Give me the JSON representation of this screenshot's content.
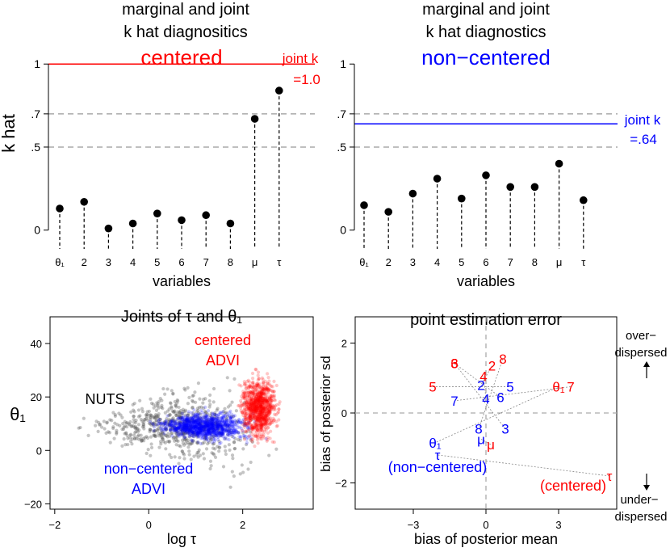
{
  "colors": {
    "red": "#ff0000",
    "blue": "#0000ff",
    "black": "#000000",
    "gray": "#aaaaaa",
    "nuts": "#555555"
  },
  "chart_data": [
    {
      "type": "scatter",
      "title_line1": "marginal and joint",
      "title_line2": "k hat diagnositics",
      "subtitle": "centered",
      "subtitle_color": "#ff0000",
      "xlabel": "variables",
      "ylabel": "k hat",
      "categories": [
        "θ₁",
        "2",
        "3",
        "4",
        "5",
        "6",
        "7",
        "8",
        "μ",
        "τ"
      ],
      "values": [
        0.13,
        0.17,
        0.01,
        0.04,
        0.1,
        0.06,
        0.09,
        0.04,
        0.67,
        0.84
      ],
      "yticks": [
        "0",
        ".5",
        ".7",
        "1"
      ],
      "ytick_values": [
        0,
        0.5,
        0.7,
        1
      ],
      "ylim": [
        -0.05,
        1.04
      ],
      "hlines": [
        0.5,
        0.7
      ],
      "joint_k": 1.0,
      "joint_label_line1": "joint k",
      "joint_label_line2": "=1.0"
    },
    {
      "type": "scatter",
      "title_line1": "marginal and joint",
      "title_line2": "k hat diagnostics",
      "subtitle": "non−centered",
      "subtitle_color": "#0000ff",
      "xlabel": "variables",
      "ylabel": "",
      "categories": [
        "θ₁",
        "2",
        "3",
        "4",
        "5",
        "6",
        "7",
        "8",
        "μ",
        "τ"
      ],
      "values": [
        0.15,
        0.11,
        0.22,
        0.31,
        0.19,
        0.33,
        0.26,
        0.26,
        0.4,
        0.18
      ],
      "yticks": [
        "0",
        ".5",
        ".7",
        "1"
      ],
      "ytick_values": [
        0,
        0.5,
        0.7,
        1
      ],
      "ylim": [
        -0.05,
        1.04
      ],
      "hlines": [
        0.5,
        0.7
      ],
      "joint_k": 0.64,
      "joint_label_line1": "joint k",
      "joint_label_line2": "=.64"
    },
    {
      "type": "scatter",
      "title": "Joints of τ and θ₁",
      "xlabel": "log τ",
      "ylabel": "θ₁",
      "xticks": [
        -2,
        0,
        2
      ],
      "yticks": [
        -20,
        0,
        20,
        40
      ],
      "xlim": [
        -2.1,
        3.5
      ],
      "ylim": [
        -22,
        50
      ],
      "series": [
        {
          "name": "NUTS",
          "color": "#555555",
          "center": [
            0.6,
            9
          ],
          "spread": [
            1.3,
            6
          ]
        },
        {
          "name_line1": "non−centered",
          "name_line2": "ADVI",
          "color": "#0000ff",
          "center": [
            1.2,
            9
          ],
          "spread": [
            0.7,
            3.5
          ]
        },
        {
          "name_line1": "centered",
          "name_line2": "ADVI",
          "color": "#ff0000",
          "center": [
            2.35,
            16
          ],
          "spread": [
            0.28,
            9
          ]
        }
      ]
    },
    {
      "type": "scatter",
      "title": "point estimation error",
      "xlabel": "bias of posterior mean",
      "ylabel": "bias of posterior sd",
      "xticks": [
        -3,
        0,
        3
      ],
      "yticks": [
        -2,
        0,
        2
      ],
      "xlim": [
        -5.4,
        5.4
      ],
      "ylim": [
        -2.75,
        2.75
      ],
      "over_label_line1": "over−",
      "over_label_line2": "dispersed",
      "under_label_line1": "under−",
      "under_label_line2": "dispersed",
      "centered_label": "(centered)",
      "noncentered_label": "(non−centered)",
      "points": [
        {
          "label": "θ₁",
          "centered": [
            3.0,
            0.75
          ],
          "noncentered": [
            -2.1,
            -0.85
          ]
        },
        {
          "label": "2",
          "centered": [
            0.25,
            1.35
          ],
          "noncentered": [
            -0.2,
            0.8
          ]
        },
        {
          "label": "3",
          "centered": [
            -1.3,
            1.42
          ],
          "noncentered": [
            0.8,
            -0.45
          ]
        },
        {
          "label": "4",
          "centered": [
            -0.1,
            1.05
          ],
          "noncentered": [
            0,
            0.4
          ]
        },
        {
          "label": "5",
          "centered": [
            -2.2,
            0.75
          ],
          "noncentered": [
            1.0,
            0.75
          ]
        },
        {
          "label": "6",
          "centered": [
            -1.3,
            1.42
          ],
          "noncentered": [
            0.6,
            0.45
          ]
        },
        {
          "label": "7",
          "centered": [
            3.5,
            0.75
          ],
          "noncentered": [
            -1.3,
            0.35
          ]
        },
        {
          "label": "8",
          "centered": [
            0.7,
            1.55
          ],
          "noncentered": [
            -0.3,
            -0.45
          ]
        },
        {
          "label": "μ",
          "centered": [
            0.2,
            -0.9
          ],
          "noncentered": [
            -0.2,
            -0.75
          ]
        },
        {
          "label": "τ",
          "centered": [
            5.1,
            -1.8
          ],
          "noncentered": [
            -2.0,
            -1.2
          ]
        }
      ]
    }
  ]
}
